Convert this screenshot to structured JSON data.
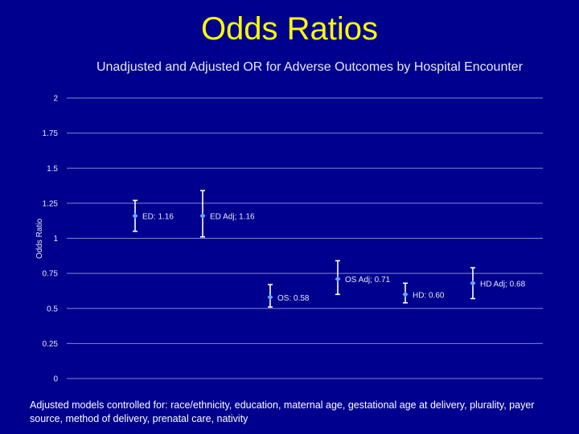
{
  "slide": {
    "title": "Odds Ratios",
    "footnote": "Adjusted models controlled for: race/ethnicity, education, maternal age, gestational age at delivery, plurality, payer source, method of delivery, prenatal care, nativity"
  },
  "colors": {
    "background": "#00008f",
    "title": "#ffff00",
    "text": "#e8e8f0",
    "grid": "#7f86d0",
    "point": "#6aa6ff",
    "errorbar": "#ffffff"
  },
  "chart_data": {
    "type": "scatter",
    "title": "Unadjusted and Adjusted OR for Adverse Outcomes by Hospital Encounter",
    "xlabel": "",
    "ylabel": "Odds Ratio",
    "ylim": [
      0,
      2
    ],
    "yticks": [
      0,
      0.25,
      0.5,
      0.75,
      1,
      1.25,
      1.5,
      1.75,
      2
    ],
    "ytick_labels": [
      "0",
      "0.25",
      "0.5",
      "0.75",
      "1",
      "1.25",
      "1.5",
      "1.75",
      "2"
    ],
    "grid": true,
    "points": [
      {
        "label": "ED: 1.16",
        "value": 1.16,
        "lower": 1.05,
        "upper": 1.27
      },
      {
        "label": "ED Adj; 1.16",
        "value": 1.16,
        "lower": 1.01,
        "upper": 1.34
      },
      {
        "label": "OS: 0.58",
        "value": 0.58,
        "lower": 0.51,
        "upper": 0.67
      },
      {
        "label": "OS Adj; 0.71",
        "value": 0.71,
        "lower": 0.6,
        "upper": 0.84
      },
      {
        "label": "HD: 0.60",
        "value": 0.6,
        "lower": 0.54,
        "upper": 0.68
      },
      {
        "label": "HD Adj; 0.68",
        "value": 0.68,
        "lower": 0.57,
        "upper": 0.79
      }
    ]
  }
}
